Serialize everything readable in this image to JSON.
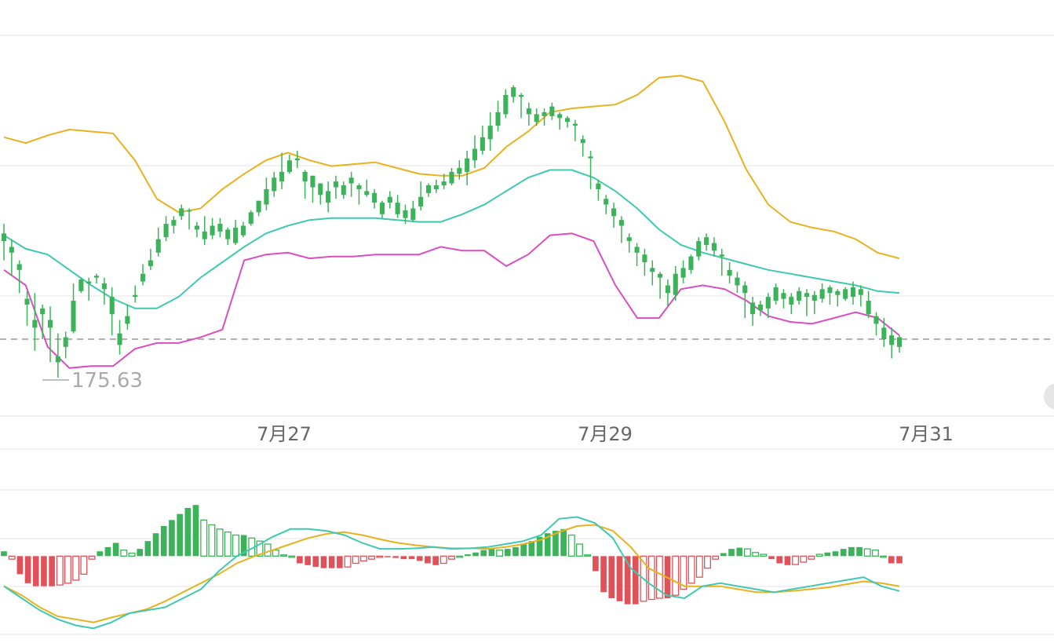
{
  "chart_data": [
    {
      "type": "candlestick",
      "x_tick_labels": [
        "7月27",
        "7月29",
        "7月31"
      ],
      "price_label": "175.63",
      "current_price_line": 178.2,
      "ylim": [
        174.2,
        194.0
      ],
      "colors": {
        "up": "#3cb35a",
        "down": "#e0525a",
        "upper_band": "#e8b21e",
        "middle_band": "#3fc9b1",
        "lower_band": "#d94fbf",
        "dash": "#999999"
      },
      "upper_band": [
        188.7,
        188.4,
        188.8,
        189.1,
        189.0,
        188.9,
        187.5,
        185.5,
        184.8,
        185.0,
        186.0,
        186.8,
        187.5,
        187.9,
        187.5,
        187.2,
        187.3,
        187.4,
        187.1,
        186.8,
        186.7,
        186.7,
        187.1,
        188.2,
        189.0,
        190.0,
        190.2,
        190.3,
        190.4,
        190.9,
        191.8,
        191.9,
        191.6,
        189.5,
        187.0,
        185.2,
        184.3,
        184.0,
        183.8,
        183.4,
        182.7,
        182.4
      ],
      "middle_band": [
        183.6,
        182.9,
        182.6,
        181.8,
        181.0,
        180.3,
        179.8,
        179.8,
        180.4,
        181.4,
        182.2,
        183.0,
        183.7,
        184.1,
        184.4,
        184.5,
        184.5,
        184.5,
        184.4,
        184.3,
        184.3,
        184.7,
        185.2,
        185.9,
        186.6,
        187.0,
        187.0,
        186.6,
        185.9,
        185.0,
        183.9,
        183.1,
        182.7,
        182.4,
        182.1,
        181.8,
        181.6,
        181.4,
        181.2,
        181.0,
        180.7,
        180.6
      ],
      "lower_band": [
        181.8,
        181.0,
        177.8,
        176.7,
        176.8,
        176.8,
        177.7,
        178.0,
        178.0,
        178.3,
        178.7,
        182.3,
        182.6,
        182.7,
        182.4,
        182.5,
        182.5,
        182.6,
        182.6,
        182.6,
        183.0,
        182.8,
        182.8,
        182.0,
        182.6,
        183.6,
        183.7,
        183.3,
        181.0,
        179.3,
        179.3,
        180.8,
        181.0,
        180.8,
        180.2,
        179.4,
        179.1,
        179.0,
        179.3,
        179.6,
        179.3,
        178.4
      ],
      "candles": [
        [
          183.3,
          184.2,
          183.7,
          182.3
        ],
        [
          182.7,
          183.4,
          183.0,
          181.5
        ],
        [
          181.8,
          182.3,
          182.1,
          180.6
        ],
        [
          180.0,
          180.7,
          180.3,
          178.9
        ],
        [
          178.8,
          180.6,
          179.2,
          177.6
        ],
        [
          179.5,
          180.0,
          179.8,
          178.2
        ],
        [
          178.8,
          179.9,
          179.2,
          177.0
        ],
        [
          177.0,
          178.5,
          177.3,
          176.2
        ],
        [
          177.8,
          178.6,
          178.3,
          177.2
        ],
        [
          178.6,
          181.1,
          180.2,
          178.5
        ],
        [
          180.7,
          181.4,
          181.3,
          180.6
        ],
        [
          181.1,
          181.4,
          181.2,
          180.2
        ],
        [
          181.4,
          181.6,
          181.5,
          181.1
        ],
        [
          180.8,
          181.4,
          181.1,
          180.0
        ],
        [
          179.5,
          180.9,
          180.4,
          178.4
        ],
        [
          177.9,
          179.2,
          178.5,
          177.4
        ],
        [
          179.0,
          180.0,
          179.4,
          178.7
        ],
        [
          180.4,
          181.0,
          180.5,
          180.1
        ],
        [
          181.2,
          182.1,
          181.6,
          181.0
        ],
        [
          182.0,
          182.9,
          182.3,
          181.8
        ],
        [
          182.7,
          184.0,
          183.4,
          182.5
        ],
        [
          183.5,
          184.6,
          184.2,
          183.3
        ],
        [
          184.1,
          184.6,
          184.4,
          183.7
        ],
        [
          184.6,
          185.2,
          185.0,
          184.4
        ],
        [
          184.9,
          185.0,
          184.9,
          183.9
        ],
        [
          183.9,
          184.3,
          184.1,
          183.5
        ],
        [
          183.4,
          184.6,
          183.8,
          183.1
        ],
        [
          183.6,
          184.5,
          184.1,
          183.4
        ],
        [
          183.8,
          184.5,
          184.2,
          183.5
        ],
        [
          183.4,
          184.0,
          183.9,
          183.1
        ],
        [
          183.2,
          184.4,
          184.0,
          183.1
        ],
        [
          183.6,
          184.3,
          184.1,
          183.5
        ],
        [
          184.2,
          184.9,
          184.8,
          184.1
        ],
        [
          184.8,
          185.4,
          185.4,
          184.6
        ],
        [
          185.2,
          186.6,
          186.0,
          184.9
        ],
        [
          185.9,
          186.9,
          186.6,
          185.6
        ],
        [
          186.4,
          187.9,
          186.9,
          186.0
        ],
        [
          186.9,
          187.8,
          187.5,
          186.8
        ],
        [
          187.5,
          188.0,
          187.6,
          187.1
        ],
        [
          186.4,
          187.0,
          186.9,
          185.5
        ],
        [
          186.1,
          186.7,
          186.7,
          185.3
        ],
        [
          185.7,
          186.3,
          186.3,
          185.2
        ],
        [
          185.3,
          186.4,
          185.9,
          184.8
        ],
        [
          186.1,
          186.7,
          186.4,
          185.5
        ],
        [
          185.7,
          186.4,
          186.2,
          185.5
        ],
        [
          186.3,
          186.9,
          186.6,
          185.6
        ],
        [
          186.0,
          186.3,
          186.2,
          185.2
        ],
        [
          185.7,
          186.5,
          185.9,
          185.6
        ],
        [
          185.3,
          186.0,
          185.8,
          185.0
        ],
        [
          184.7,
          185.4,
          185.3,
          184.5
        ],
        [
          185.3,
          185.9,
          185.6,
          185.0
        ],
        [
          184.7,
          185.7,
          185.3,
          184.5
        ],
        [
          184.5,
          185.2,
          184.9,
          184.2
        ],
        [
          184.4,
          185.4,
          185.0,
          184.3
        ],
        [
          185.1,
          186.4,
          185.6,
          184.9
        ],
        [
          185.8,
          186.3,
          186.2,
          185.6
        ],
        [
          186.0,
          186.5,
          186.2,
          185.8
        ],
        [
          186.2,
          186.8,
          186.4,
          186.0
        ],
        [
          186.3,
          187.1,
          186.9,
          186.2
        ],
        [
          186.8,
          187.5,
          187.1,
          186.5
        ],
        [
          186.9,
          188.0,
          187.6,
          186.2
        ],
        [
          187.5,
          188.8,
          188.1,
          187.1
        ],
        [
          188.0,
          189.3,
          188.7,
          187.8
        ],
        [
          188.6,
          190.0,
          189.3,
          188.0
        ],
        [
          189.3,
          190.6,
          190.0,
          189.0
        ],
        [
          189.9,
          191.2,
          190.9,
          189.7
        ],
        [
          190.8,
          191.4,
          191.3,
          190.5
        ],
        [
          190.8,
          191.0,
          190.9,
          189.7
        ],
        [
          189.9,
          190.5,
          190.2,
          189.3
        ],
        [
          189.5,
          190.2,
          189.9,
          189.3
        ],
        [
          189.8,
          190.2,
          190.0,
          189.3
        ],
        [
          189.8,
          190.5,
          190.3,
          189.6
        ],
        [
          189.7,
          190.0,
          189.9,
          189.1
        ],
        [
          189.5,
          189.8,
          189.7,
          189.2
        ],
        [
          189.3,
          189.6,
          189.4,
          188.5
        ],
        [
          188.4,
          188.8,
          188.6,
          187.7
        ],
        [
          187.6,
          188.0,
          187.7,
          186.0
        ],
        [
          186.0,
          186.5,
          186.3,
          185.4
        ],
        [
          185.2,
          185.7,
          185.5,
          184.7
        ],
        [
          184.6,
          185.3,
          185.0,
          184.0
        ],
        [
          184.1,
          184.6,
          184.4,
          183.2
        ],
        [
          183.3,
          183.7,
          183.5,
          182.7
        ],
        [
          182.7,
          183.2,
          183.0,
          182.0
        ],
        [
          182.2,
          182.9,
          182.6,
          181.5
        ],
        [
          181.7,
          182.3,
          181.9,
          181.0
        ],
        [
          181.4,
          181.7,
          181.6,
          180.3
        ],
        [
          180.6,
          181.3,
          181.0,
          179.9
        ],
        [
          180.5,
          182.0,
          181.6,
          180.2
        ],
        [
          181.4,
          182.3,
          181.9,
          181.1
        ],
        [
          181.8,
          182.6,
          182.5,
          181.6
        ],
        [
          182.5,
          183.5,
          183.3,
          182.3
        ],
        [
          183.1,
          183.7,
          183.5,
          182.8
        ],
        [
          182.8,
          183.5,
          183.2,
          182.5
        ],
        [
          182.5,
          182.9,
          182.6,
          181.5
        ],
        [
          181.5,
          182.2,
          181.8,
          181.1
        ],
        [
          181.0,
          181.7,
          181.4,
          180.6
        ],
        [
          180.6,
          181.2,
          181.0,
          179.3
        ],
        [
          179.5,
          180.4,
          180.1,
          178.9
        ],
        [
          179.7,
          180.2,
          180.0,
          179.4
        ],
        [
          179.8,
          180.6,
          180.4,
          179.3
        ],
        [
          180.2,
          181.1,
          180.9,
          180.0
        ],
        [
          180.3,
          180.8,
          180.6,
          179.8
        ],
        [
          180.0,
          180.6,
          180.4,
          179.5
        ],
        [
          180.2,
          180.9,
          180.7,
          180.0
        ],
        [
          180.4,
          180.8,
          180.6,
          179.4
        ],
        [
          180.2,
          180.7,
          180.5,
          179.5
        ],
        [
          180.3,
          181.1,
          180.8,
          180.1
        ],
        [
          180.6,
          181.0,
          180.9,
          180.0
        ],
        [
          180.5,
          180.8,
          180.7,
          179.9
        ],
        [
          180.3,
          180.9,
          180.8,
          180.2
        ],
        [
          180.4,
          181.2,
          180.9,
          180.0
        ],
        [
          180.5,
          181.0,
          180.8,
          179.9
        ],
        [
          179.5,
          180.7,
          180.2,
          179.3
        ],
        [
          179.0,
          179.6,
          179.4,
          178.4
        ],
        [
          178.2,
          179.3,
          178.8,
          177.8
        ],
        [
          177.9,
          178.8,
          178.4,
          177.2
        ],
        [
          177.8,
          178.4,
          178.3,
          177.5
        ]
      ]
    },
    {
      "type": "macd",
      "colors": {
        "pos": "#3cb35a",
        "neg": "#e0525a",
        "dif": "#3fc9b1",
        "dea": "#e8b21e"
      },
      "ylim": [
        -1.3,
        1.1
      ],
      "hist": [
        0.08,
        -0.05,
        -0.3,
        -0.45,
        -0.5,
        -0.5,
        -0.5,
        -0.48,
        -0.45,
        -0.4,
        -0.3,
        -0.05,
        0.08,
        0.15,
        0.22,
        0.1,
        0.05,
        0.12,
        0.25,
        0.38,
        0.5,
        0.6,
        0.7,
        0.8,
        0.85,
        0.6,
        0.52,
        0.45,
        0.4,
        0.35,
        0.35,
        0.3,
        0.25,
        0.2,
        0.1,
        0.02,
        0,
        -0.12,
        -0.15,
        -0.18,
        -0.2,
        -0.2,
        -0.2,
        -0.18,
        -0.12,
        -0.08,
        -0.05,
        -0.02,
        -0.02,
        -0.03,
        -0.05,
        -0.05,
        -0.08,
        -0.12,
        -0.15,
        -0.12,
        -0.05,
        0,
        0.03,
        0.06,
        0.1,
        0.12,
        0.1,
        0.12,
        0.15,
        0.2,
        0.25,
        0.32,
        0.38,
        0.42,
        0.45,
        0.35,
        0.2,
        0.02,
        -0.25,
        -0.6,
        -0.7,
        -0.75,
        -0.8,
        -0.8,
        -0.75,
        -0.72,
        -0.7,
        -0.7,
        -0.65,
        -0.55,
        -0.45,
        -0.35,
        -0.2,
        -0.05,
        0.05,
        0.12,
        0.14,
        0.12,
        0.06,
        0.03,
        -0.05,
        -0.12,
        -0.15,
        -0.14,
        -0.1,
        -0.05,
        0.03,
        0.06,
        0.08,
        0.12,
        0.15,
        0.15,
        0.12,
        0.1,
        0,
        -0.12,
        -0.12
      ],
      "dif": [
        -0.5,
        -0.7,
        -0.9,
        -1.05,
        -1.15,
        -1.2,
        -1.1,
        -0.95,
        -0.9,
        -0.85,
        -0.7,
        -0.55,
        -0.25,
        0.0,
        0.15,
        0.32,
        0.45,
        0.45,
        0.42,
        0.35,
        0.22,
        0.12,
        0.12,
        0.13,
        0.15,
        0.12,
        0.13,
        0.15,
        0.2,
        0.25,
        0.35,
        0.62,
        0.65,
        0.55,
        0.3,
        -0.2,
        -0.45,
        -0.65,
        -0.7,
        -0.5,
        -0.45,
        -0.5,
        -0.55,
        -0.6,
        -0.55,
        -0.5,
        -0.45,
        -0.4,
        -0.35,
        -0.5,
        -0.58
      ],
      "dea": [
        -0.5,
        -0.65,
        -0.85,
        -1.0,
        -1.05,
        -1.1,
        -1.02,
        -0.95,
        -0.88,
        -0.75,
        -0.6,
        -0.45,
        -0.3,
        -0.12,
        0.0,
        0.1,
        0.2,
        0.3,
        0.37,
        0.4,
        0.35,
        0.28,
        0.22,
        0.18,
        0.15,
        0.13,
        0.13,
        0.12,
        0.15,
        0.2,
        0.27,
        0.4,
        0.5,
        0.52,
        0.42,
        0.15,
        -0.2,
        -0.35,
        -0.5,
        -0.5,
        -0.5,
        -0.55,
        -0.6,
        -0.6,
        -0.58,
        -0.55,
        -0.52,
        -0.47,
        -0.42,
        -0.45,
        -0.5
      ]
    }
  ]
}
